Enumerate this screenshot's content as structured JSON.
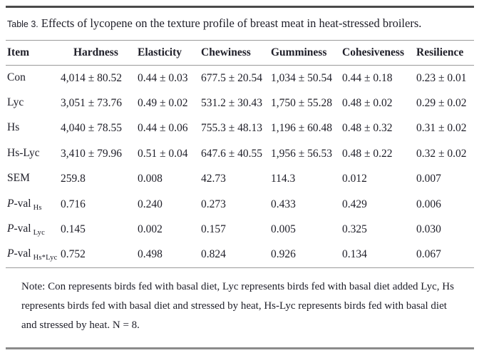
{
  "title": {
    "label": "Table 3.",
    "caption": " Effects of lycopene on the texture profile of breast meat in heat-stressed broilers."
  },
  "table": {
    "columns": [
      "Item",
      "Hardness",
      "Elasticity",
      "Chewiness",
      "Gumminess",
      "Cohesiveness",
      "Resilience"
    ],
    "rows": [
      {
        "label": {
          "text": "Con"
        },
        "values": [
          "4,014 ± 80.52",
          "0.44 ± 0.03",
          "677.5 ± 20.54",
          "1,034 ± 50.54",
          "0.44 ± 0.18",
          "0.23 ± 0.01"
        ]
      },
      {
        "label": {
          "text": "Lyc"
        },
        "values": [
          "3,051 ± 73.76",
          "0.49 ± 0.02",
          "531.2 ± 30.43",
          "1,750 ± 55.28",
          "0.48 ± 0.02",
          "0.29 ± 0.02"
        ]
      },
      {
        "label": {
          "text": "Hs"
        },
        "values": [
          "4,040 ± 78.55",
          "0.44 ± 0.06",
          "755.3 ± 48.13",
          "1,196 ± 60.48",
          "0.48 ± 0.32",
          "0.31 ± 0.02"
        ]
      },
      {
        "label": {
          "text": "Hs-Lyc"
        },
        "values": [
          "3,410 ± 79.96",
          "0.51 ± 0.04",
          "647.6 ± 40.55",
          "1,956 ± 56.53",
          "0.48 ± 0.22",
          "0.32 ± 0.02"
        ]
      },
      {
        "label": {
          "text": "SEM"
        },
        "values": [
          "259.8",
          "0.008",
          "42.73",
          "114.3",
          "0.012",
          "0.007"
        ]
      },
      {
        "label": {
          "italic": "P",
          "text": "-val",
          "sub": "Hs"
        },
        "values": [
          "0.716",
          "0.240",
          "0.273",
          "0.433",
          "0.429",
          "0.006"
        ]
      },
      {
        "label": {
          "italic": "P",
          "text": "-val",
          "sub": "Lyc"
        },
        "values": [
          "0.145",
          "0.002",
          "0.157",
          "0.005",
          "0.325",
          "0.030"
        ]
      },
      {
        "label": {
          "italic": "P",
          "text": "-val",
          "sub": "Hs*Lyc"
        },
        "values": [
          "0.752",
          "0.498",
          "0.824",
          "0.926",
          "0.134",
          "0.067"
        ]
      }
    ]
  },
  "note": "Note: Con represents birds fed with basal diet, Lyc represents birds fed with basal diet added Lyc, Hs represents birds fed with basal diet and stressed by heat, Hs-Lyc represents birds fed with basal diet and stressed by heat. N = 8.",
  "colors": {
    "text": "#20202a",
    "rule_heavy_top": "#4a4a4a",
    "rule_heavy_bottom": "#8b8b8b",
    "rule_light": "#9a9a9a",
    "background": "#ffffff"
  }
}
